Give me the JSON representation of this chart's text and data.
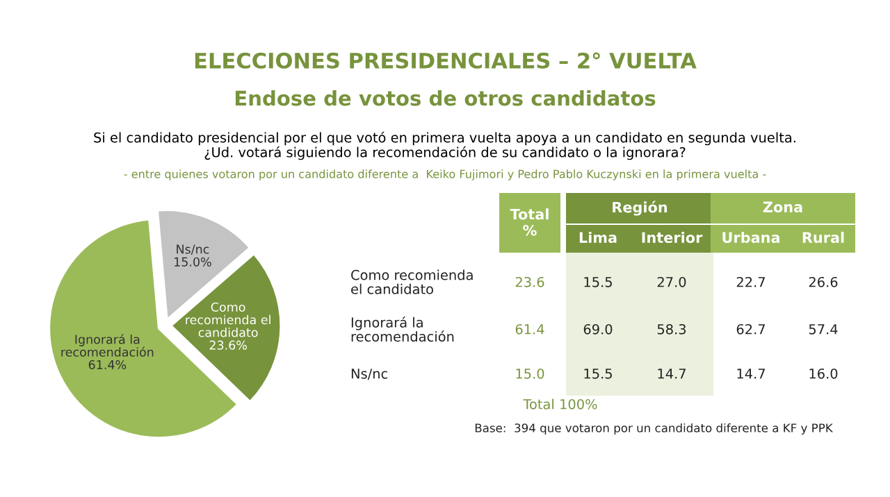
{
  "chart_data": [
    {
      "type": "pie",
      "title": "ELECCIONES PRESIDENCIALES – 2° VUELTA",
      "subtitle": "Endose de votos de otros candidatos",
      "annotations": [
        "Si el candidato presidencial por el que votó en primera vuelta apoya a un candidato en segunda vuelta.\n¿Ud. votará siguiendo la recomendación de su candidato o la ignorara?",
        "- entre quienes votaron por un candidato diferente a  Keiko Fujimori y Pedro Pablo Kuczynski en la primera vuelta -"
      ],
      "categories": [
        "Ns/nc",
        "Como\nrecomienda el\ncandidato",
        "Ignorará la\nrecomendación"
      ],
      "values": [
        15.0,
        23.6,
        61.4
      ],
      "value_labels": [
        "15.0%",
        "23.6%",
        "61.4%"
      ],
      "colors": [
        "#c3c3c3",
        "#77933c",
        "#9bbb59"
      ]
    },
    {
      "type": "other",
      "categories": [
        "Total\n%",
        "Lima",
        "Interior",
        "Urbana",
        "Rural"
      ],
      "colors": [
        "#9bbb59",
        "#77933c",
        "#77933c",
        "#9bbb59",
        "#9bbb59"
      ],
      "y_categories": [
        "Como recomienda\nel candidato",
        "Ignorará la\nrecomendación",
        "Ns/nc"
      ],
      "cell_labels": [
        [
          "23.6",
          "15.5",
          "27.0",
          "22.7",
          "26.6"
        ],
        [
          "61.4",
          "69.0",
          "58.3",
          "62.7",
          "57.4"
        ],
        [
          "15.0",
          "15.5",
          "14.7",
          "14.7",
          "16.0"
        ]
      ],
      "annotations": [
        "Región",
        "Zona",
        "Total 100%",
        "Base:  394 que votaron por un candidato diferente a KF y PPK"
      ]
    }
  ]
}
